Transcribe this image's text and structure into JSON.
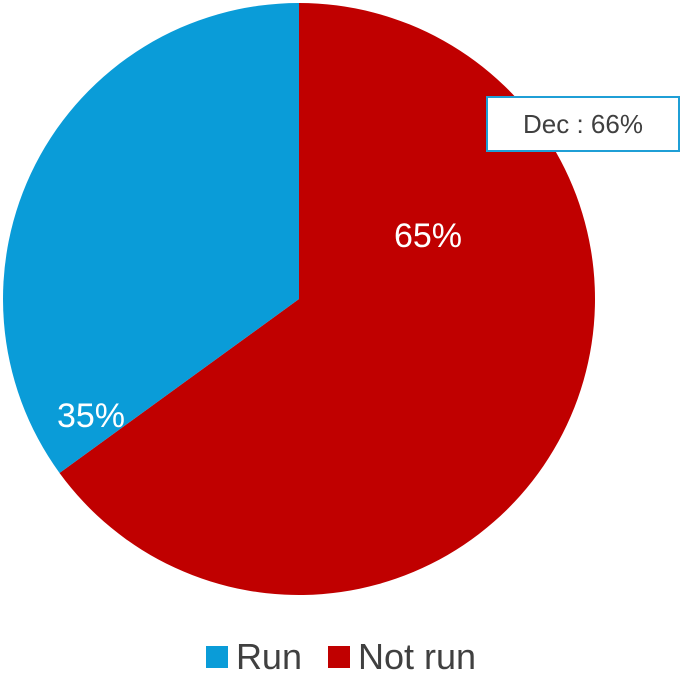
{
  "chart_data": {
    "type": "pie",
    "slices": [
      {
        "name": "Run",
        "value": 35,
        "label": "35%",
        "color": "#0a9cd8"
      },
      {
        "name": "Not run",
        "value": 65,
        "label": "65%",
        "color": "#c00000"
      }
    ],
    "annotation": "Dec : 66%",
    "legend_position": "bottom"
  }
}
